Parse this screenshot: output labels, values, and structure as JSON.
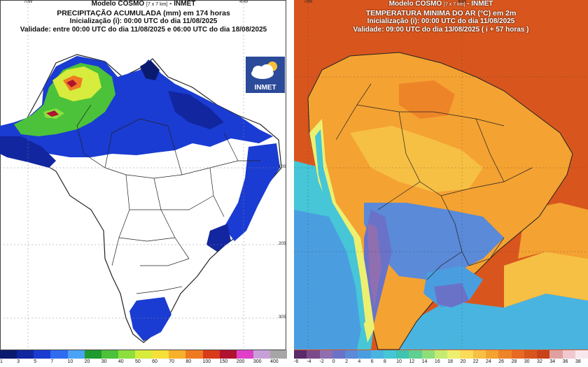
{
  "left_map": {
    "header": {
      "model": "Modelo COSMO",
      "resolution": "[7 x 7 km]",
      "agency": "- INMET",
      "title": "PRECIPITAÇÃO ACUMULADA (mm) em 174 horas",
      "init": "Inicialização (i): 00:00 UTC do dia 11/08/2025",
      "validity": "Validade: entre 00:00 UTC do dia 11/08/2025 e 06:00 UTC do dia 18/08/2025"
    },
    "logo_text": "INMET",
    "lon_labels": [
      "70W",
      "40W"
    ],
    "lat_labels": [
      "10S",
      "20S",
      "30S"
    ],
    "colorbar": {
      "labels": [
        "1",
        "3",
        "5",
        "7",
        "10",
        "20",
        "30",
        "40",
        "50",
        "60",
        "70",
        "80",
        "100",
        "150",
        "200",
        "300",
        "400"
      ],
      "colors": [
        "#0a1a6e",
        "#1226a0",
        "#1a3cd2",
        "#2f6cf0",
        "#4aa3f5",
        "#1e9a2e",
        "#4cc23a",
        "#8ede3e",
        "#d7ec3c",
        "#f5e03a",
        "#f6b02b",
        "#f07a22",
        "#d93a1a",
        "#b01230",
        "#e040c8",
        "#c8a0d8",
        "#a6a6a6"
      ]
    }
  },
  "right_map": {
    "header": {
      "model": "Modelo COSMO",
      "resolution": "[7 x 7 km]",
      "agency": "- INMET",
      "title": "TEMPERATURA MINIMA DO AR (°C) em 2m",
      "init": "Inicialização (i): 00:00 UTC do dia 11/08/2025",
      "validity": "Validade: 09:00 UTC do dia 13/08/2025 ( i + 57 horas )"
    },
    "lon_labels": [
      "70W",
      "40W"
    ],
    "colorbar": {
      "labels": [
        "-6",
        "-4",
        "-2",
        "0",
        "2",
        "4",
        "6",
        "8",
        "10",
        "12",
        "14",
        "16",
        "18",
        "20",
        "22",
        "24",
        "26",
        "28",
        "30",
        "32",
        "34",
        "36",
        "38"
      ],
      "colors": [
        "#5a2a6a",
        "#7a4a8a",
        "#8f6fb0",
        "#6a72c8",
        "#5a8ad8",
        "#4a9ee0",
        "#4ab4e0",
        "#46c6d6",
        "#3ec4b0",
        "#5ed092",
        "#8ede7a",
        "#c4ec72",
        "#ecf070",
        "#f8dc5a",
        "#f6c044",
        "#f4a232",
        "#ee8428",
        "#e66a22",
        "#d8561e",
        "#c8421a",
        "#e0a0a0",
        "#f0c8d0",
        "#f8e8ee"
      ]
    }
  }
}
